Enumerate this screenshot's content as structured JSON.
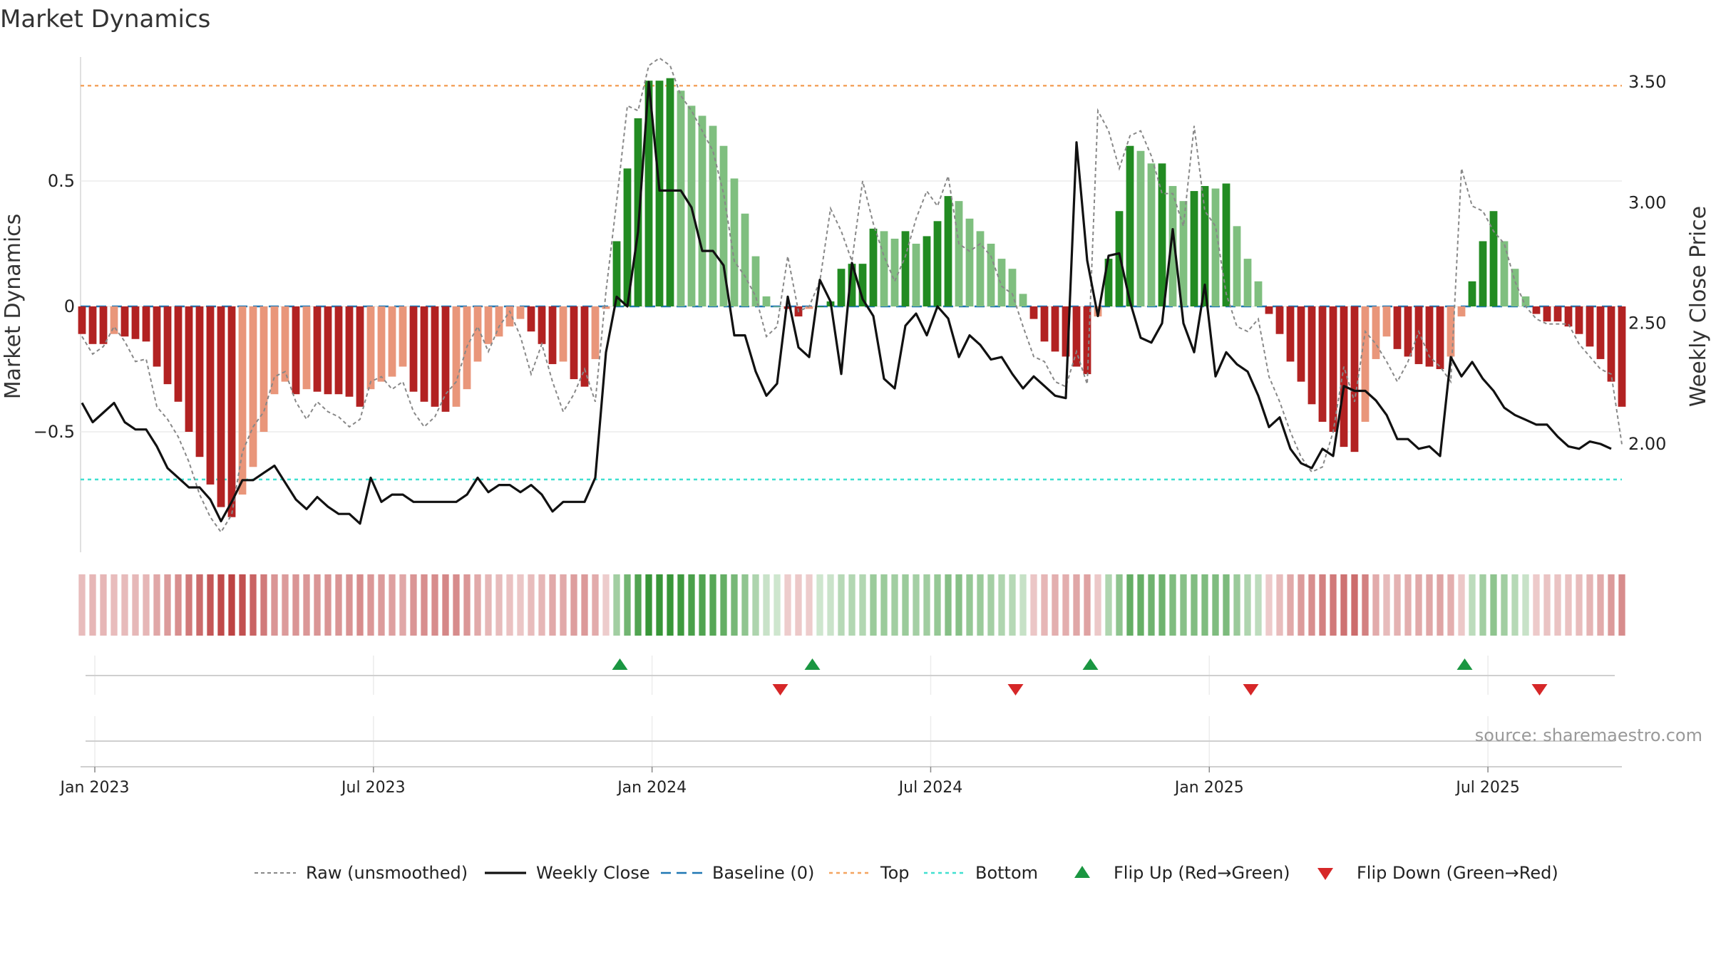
{
  "title": "Market Dynamics",
  "source": "source: sharemaestro.com",
  "chart_data": {
    "type": "bar",
    "y_left_label": "Market Dynamics",
    "y_right_label": "Weekly Close Price",
    "y_left_ticks": [
      "0.5",
      "0",
      "−0.5"
    ],
    "y_right_ticks": [
      "3.50",
      "3.00",
      "2.50",
      "2.00"
    ],
    "x_ticks": [
      "Jan 2023",
      "Jul 2023",
      "Jan 2024",
      "Jul 2024",
      "Jan 2025",
      "Jul 2025"
    ],
    "y_left_range": [
      -0.98,
      0.98
    ],
    "y_right_range": [
      1.5,
      3.6
    ],
    "top_level": 0.88,
    "bottom_level": -0.69,
    "baseline": 0,
    "colors": {
      "strong_red": "#b22222",
      "weak_red": "#e9967a",
      "strong_green": "#228b22",
      "weak_green": "#7fbf7f",
      "top": "#f4a460",
      "bottom": "#40e0d0",
      "baseline": "#1f77b4",
      "raw": "#888888",
      "close": "#111111",
      "flip_up": "#1a9641",
      "flip_down": "#d62728"
    },
    "bars": [
      -0.11,
      -0.15,
      -0.15,
      -0.11,
      -0.12,
      -0.13,
      -0.14,
      -0.24,
      -0.31,
      -0.38,
      -0.5,
      -0.6,
      -0.71,
      -0.8,
      -0.84,
      -0.75,
      -0.64,
      -0.5,
      -0.35,
      -0.3,
      -0.35,
      -0.33,
      -0.34,
      -0.35,
      -0.35,
      -0.36,
      -0.4,
      -0.33,
      -0.3,
      -0.28,
      -0.24,
      -0.34,
      -0.38,
      -0.4,
      -0.42,
      -0.4,
      -0.33,
      -0.22,
      -0.15,
      -0.12,
      -0.08,
      -0.05,
      -0.1,
      -0.15,
      -0.23,
      -0.22,
      -0.29,
      -0.32,
      -0.21,
      -0.01,
      0.26,
      0.55,
      0.75,
      0.9,
      0.9,
      0.91,
      0.86,
      0.8,
      0.76,
      0.72,
      0.64,
      0.51,
      0.37,
      0.2,
      0.04,
      0.0,
      -0.01,
      -0.04,
      -0.01,
      0.0,
      0.02,
      0.15,
      0.17,
      0.17,
      0.31,
      0.3,
      0.27,
      0.3,
      0.25,
      0.28,
      0.34,
      0.44,
      0.42,
      0.35,
      0.3,
      0.25,
      0.19,
      0.15,
      0.05,
      -0.05,
      -0.14,
      -0.18,
      -0.2,
      -0.24,
      -0.27,
      -0.04,
      0.19,
      0.38,
      0.64,
      0.62,
      0.57,
      0.57,
      0.48,
      0.42,
      0.46,
      0.48,
      0.47,
      0.49,
      0.32,
      0.19,
      0.1,
      -0.03,
      -0.11,
      -0.22,
      -0.3,
      -0.39,
      -0.46,
      -0.5,
      -0.56,
      -0.58,
      -0.46,
      -0.21,
      -0.12,
      -0.17,
      -0.2,
      -0.23,
      -0.24,
      -0.25,
      -0.2,
      -0.04,
      0.1,
      0.26,
      0.38,
      0.26,
      0.15,
      0.04,
      -0.03,
      -0.06,
      -0.06,
      -0.08,
      -0.11,
      -0.16,
      -0.21,
      -0.3,
      -0.4
    ],
    "raw": [
      -0.12,
      -0.19,
      -0.16,
      -0.08,
      -0.14,
      -0.22,
      -0.21,
      -0.4,
      -0.45,
      -0.52,
      -0.62,
      -0.75,
      -0.84,
      -0.9,
      -0.83,
      -0.58,
      -0.48,
      -0.42,
      -0.28,
      -0.26,
      -0.38,
      -0.45,
      -0.38,
      -0.42,
      -0.44,
      -0.48,
      -0.45,
      -0.3,
      -0.28,
      -0.33,
      -0.3,
      -0.42,
      -0.48,
      -0.44,
      -0.35,
      -0.3,
      -0.16,
      -0.08,
      -0.18,
      -0.08,
      -0.02,
      -0.12,
      -0.27,
      -0.15,
      -0.3,
      -0.42,
      -0.35,
      -0.25,
      -0.38,
      0.06,
      0.42,
      0.8,
      0.78,
      0.96,
      0.99,
      0.96,
      0.84,
      0.78,
      0.7,
      0.62,
      0.45,
      0.18,
      0.12,
      0.04,
      -0.12,
      -0.08,
      0.2,
      -0.02,
      0.0,
      0.1,
      0.39,
      0.3,
      0.18,
      0.5,
      0.33,
      0.2,
      0.1,
      0.2,
      0.35,
      0.46,
      0.4,
      0.52,
      0.25,
      0.22,
      0.25,
      0.2,
      0.08,
      0.05,
      -0.08,
      -0.2,
      -0.22,
      -0.3,
      -0.32,
      -0.18,
      -0.31,
      0.78,
      0.7,
      0.55,
      0.68,
      0.7,
      0.6,
      0.45,
      0.45,
      0.32,
      0.72,
      0.38,
      0.32,
      0.05,
      -0.08,
      -0.1,
      -0.05,
      -0.28,
      -0.38,
      -0.5,
      -0.6,
      -0.66,
      -0.64,
      -0.5,
      -0.24,
      -0.38,
      -0.1,
      -0.15,
      -0.22,
      -0.3,
      -0.22,
      -0.1,
      -0.2,
      -0.24,
      -0.3,
      0.55,
      0.4,
      0.38,
      0.3,
      0.25,
      0.1,
      0.0,
      -0.05,
      -0.07,
      -0.07,
      -0.07,
      -0.15,
      -0.2,
      -0.25,
      -0.27,
      -0.55
    ],
    "close": [
      2.17,
      2.09,
      2.13,
      2.17,
      2.09,
      2.06,
      2.06,
      1.99,
      1.9,
      1.86,
      1.82,
      1.82,
      1.77,
      1.68,
      1.76,
      1.85,
      1.85,
      1.88,
      1.91,
      1.84,
      1.77,
      1.73,
      1.78,
      1.74,
      1.71,
      1.71,
      1.67,
      1.86,
      1.76,
      1.79,
      1.79,
      1.76,
      1.76,
      1.76,
      1.76,
      1.76,
      1.79,
      1.86,
      1.8,
      1.83,
      1.83,
      1.8,
      1.83,
      1.79,
      1.72,
      1.76,
      1.76,
      1.76,
      1.86,
      2.38,
      2.61,
      2.57,
      2.88,
      3.5,
      3.05,
      3.05,
      3.05,
      2.98,
      2.8,
      2.8,
      2.74,
      2.45,
      2.45,
      2.3,
      2.2,
      2.25,
      2.61,
      2.4,
      2.36,
      2.68,
      2.59,
      2.29,
      2.75,
      2.6,
      2.53,
      2.27,
      2.23,
      2.49,
      2.54,
      2.45,
      2.57,
      2.52,
      2.36,
      2.45,
      2.41,
      2.35,
      2.36,
      2.29,
      2.23,
      2.28,
      2.24,
      2.2,
      2.19,
      3.25,
      2.76,
      2.53,
      2.78,
      2.79,
      2.59,
      2.44,
      2.42,
      2.5,
      2.89,
      2.5,
      2.38,
      2.66,
      2.28,
      2.38,
      2.33,
      2.3,
      2.2,
      2.07,
      2.11,
      1.98,
      1.92,
      1.9,
      1.98,
      1.95,
      2.24,
      2.22,
      2.22,
      2.18,
      2.12,
      2.02,
      2.02,
      1.98,
      1.99,
      1.95,
      2.36,
      2.28,
      2.34,
      2.27,
      2.22,
      2.15,
      2.12,
      2.1,
      2.08,
      2.08,
      2.03,
      1.99,
      1.98,
      2.01,
      2.0,
      1.98
    ],
    "flips": [
      {
        "index": 50,
        "dir": "up"
      },
      {
        "index": 65,
        "dir": "down"
      },
      {
        "index": 68,
        "dir": "up"
      },
      {
        "index": 87,
        "dir": "down"
      },
      {
        "index": 94,
        "dir": "up"
      },
      {
        "index": 109,
        "dir": "down"
      },
      {
        "index": 129,
        "dir": "up"
      },
      {
        "index": 136,
        "dir": "down"
      }
    ],
    "legend": [
      {
        "key": "raw",
        "label": "Raw (unsmoothed)"
      },
      {
        "key": "close",
        "label": "Weekly Close"
      },
      {
        "key": "baseline",
        "label": "Baseline (0)"
      },
      {
        "key": "top",
        "label": "Top"
      },
      {
        "key": "bottom",
        "label": "Bottom"
      },
      {
        "key": "flip_up",
        "label": "Flip Up (Red→Green)"
      },
      {
        "key": "flip_down",
        "label": "Flip Down (Green→Red)"
      }
    ]
  }
}
